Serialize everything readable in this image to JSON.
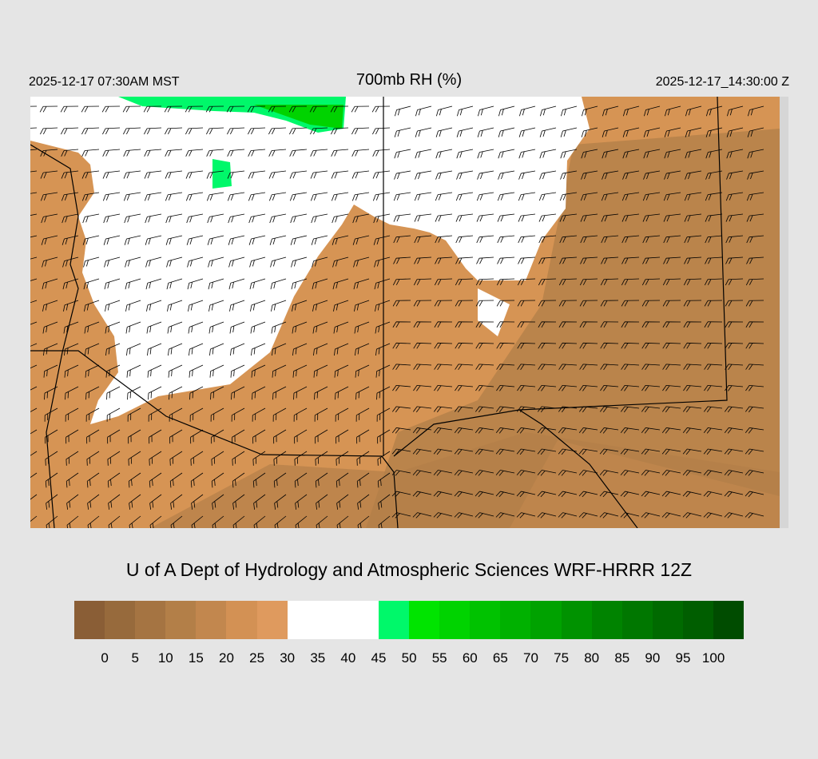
{
  "header": {
    "title": "700mb RH (%)",
    "local_time": "2025-12-17 07:30AM MST",
    "valid_time": "2025-12-17_14:30:00 Z"
  },
  "map": {
    "field": "700mb relative humidity with wind barbs",
    "background_fill": "#d69454",
    "dry_fill": "#c2874e",
    "moist_fill": "#ffffff",
    "wet_fill": "#00f86a"
  },
  "credit": "U of A Dept of Hydrology and Atmospheric Sciences WRF-HRRR 12Z",
  "colorbar": {
    "labels": [
      "0",
      "5",
      "10",
      "15",
      "20",
      "25",
      "30",
      "35",
      "40",
      "45",
      "50",
      "55",
      "60",
      "65",
      "70",
      "75",
      "80",
      "85",
      "90",
      "95",
      "100"
    ],
    "colors": [
      "#8a5e36",
      "#976a3c",
      "#a57442",
      "#b37f48",
      "#c2874e",
      "#d39154",
      "#df9a5e",
      "#ffffff",
      "#ffffff",
      "#ffffff",
      "#00f86a",
      "#00e400",
      "#00d300",
      "#00c200",
      "#00b100",
      "#00a200",
      "#009200",
      "#008300",
      "#007700",
      "#006a00",
      "#005e00",
      "#004c00"
    ]
  }
}
